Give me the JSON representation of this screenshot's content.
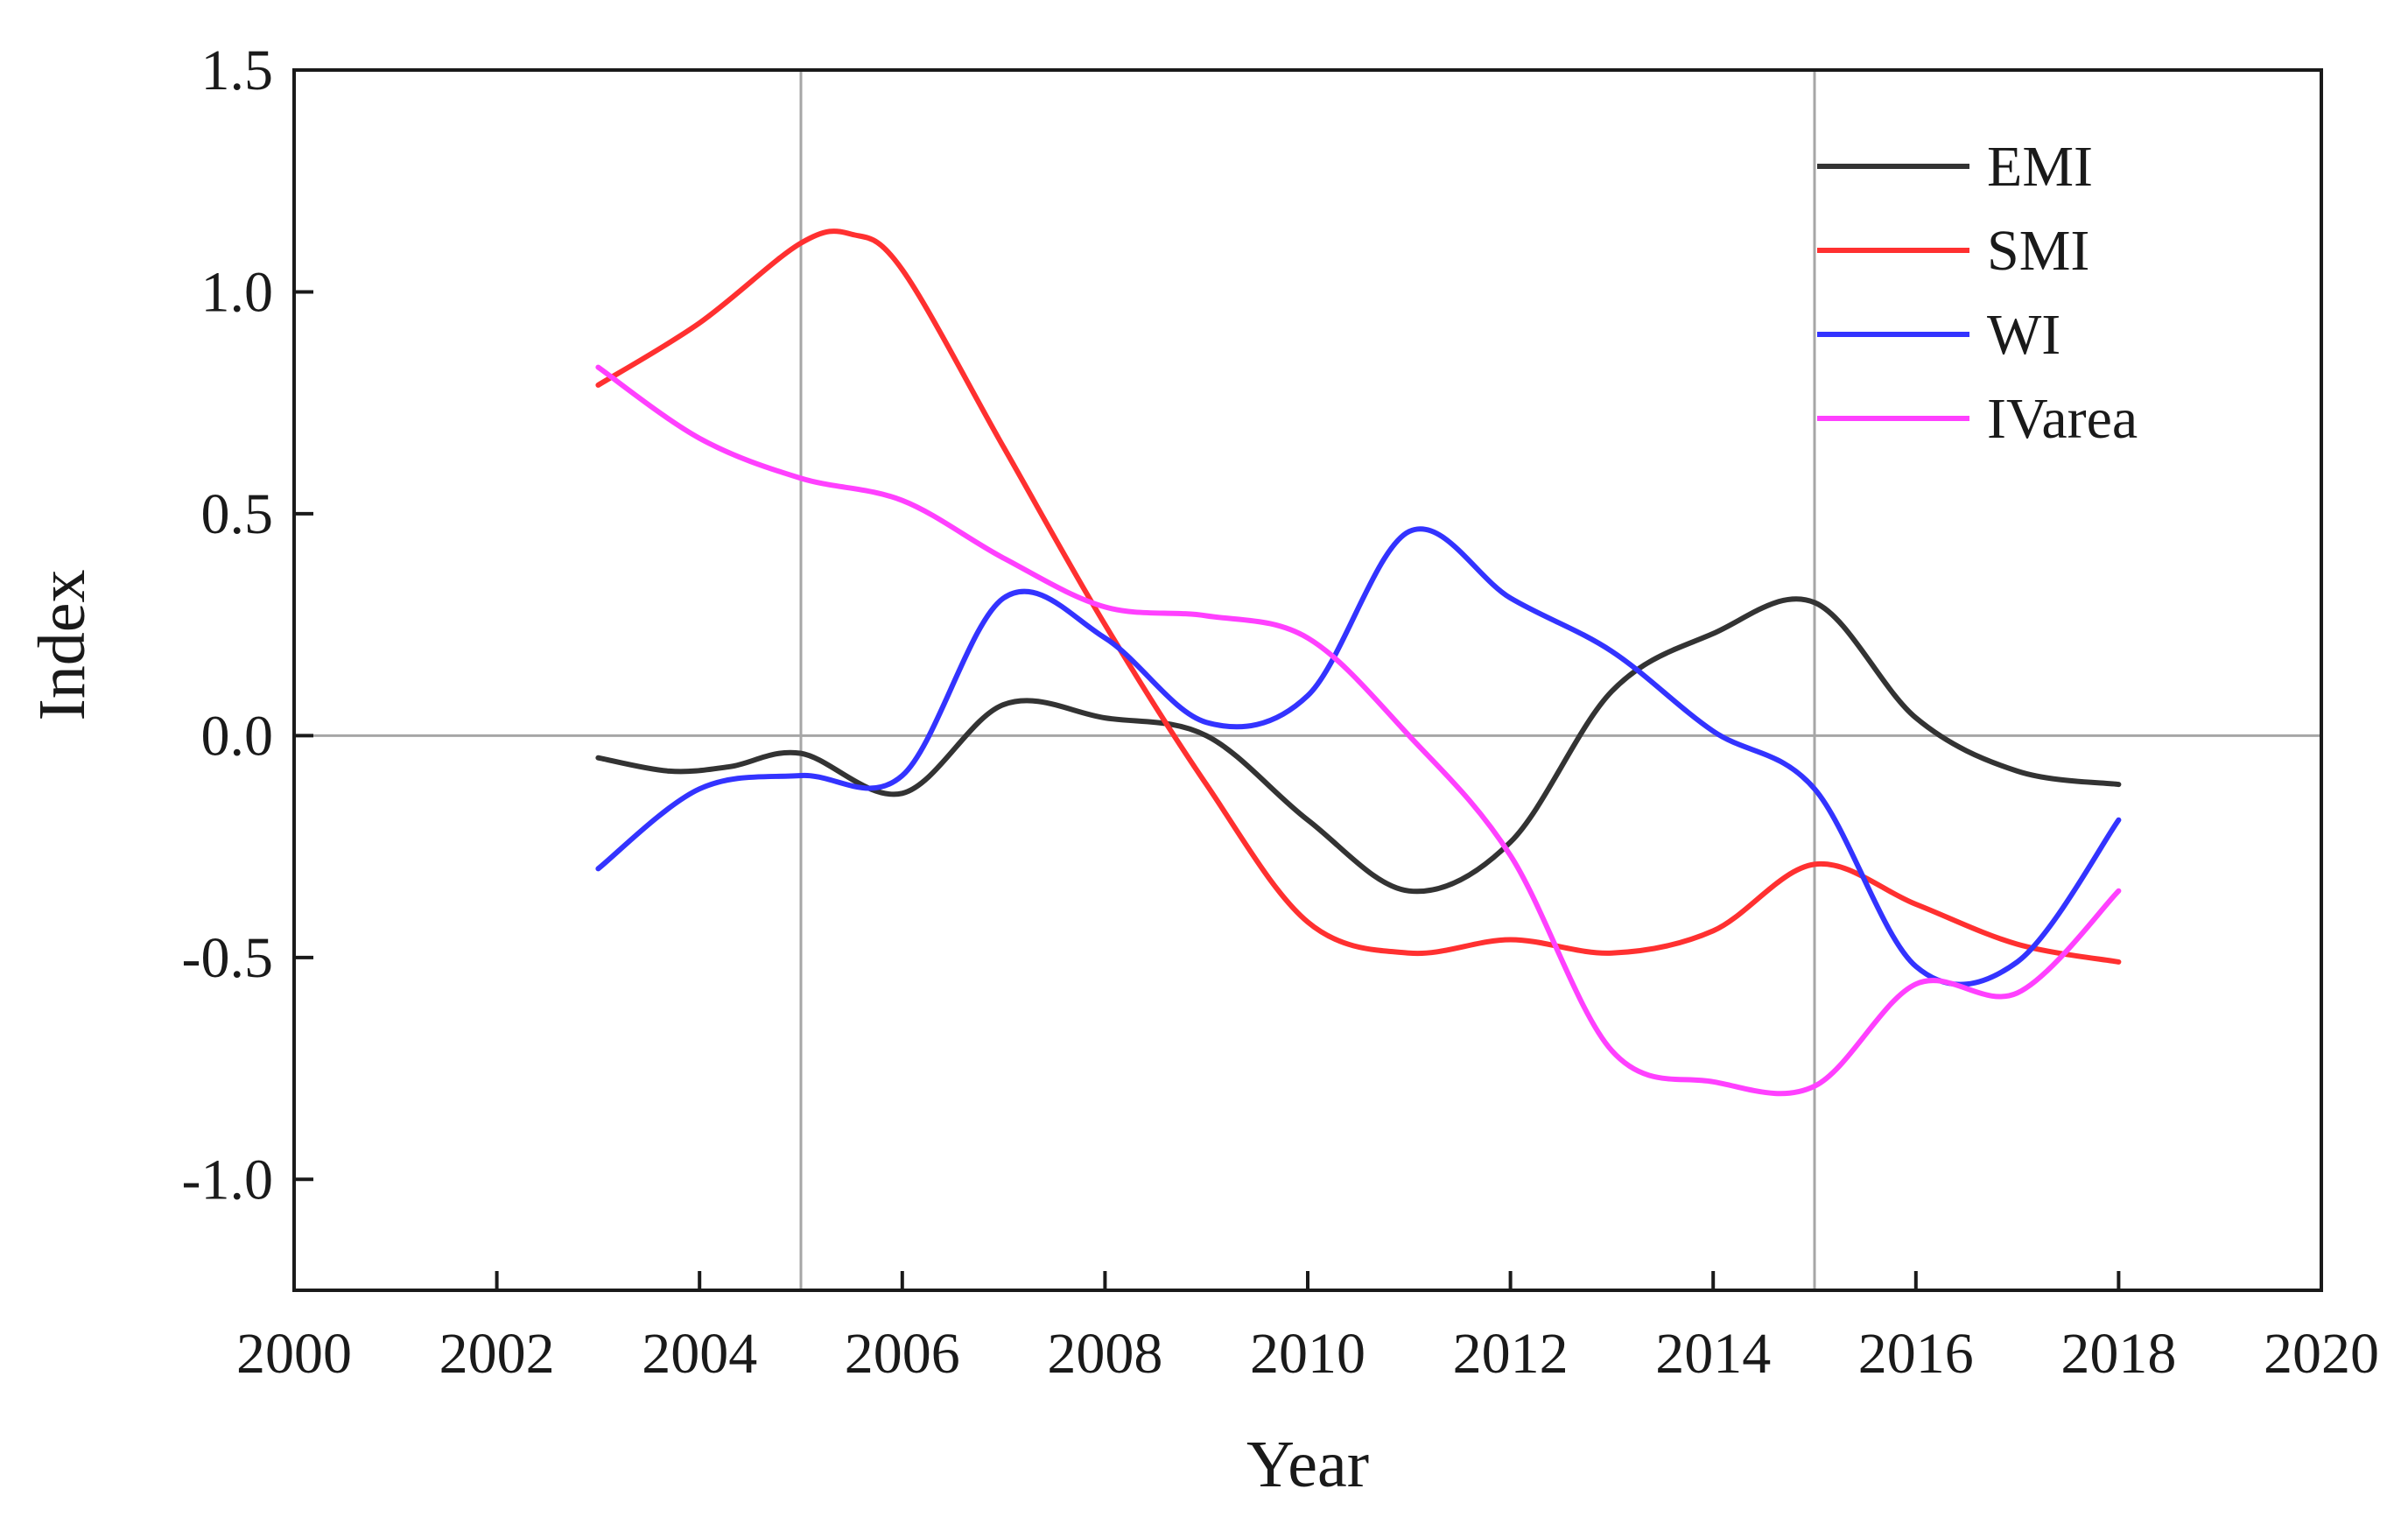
{
  "chart_data": {
    "type": "line",
    "title": "",
    "xlabel": "Year",
    "ylabel": "Index",
    "xlim": [
      2000,
      2020
    ],
    "ylim": [
      -1.25,
      1.5
    ],
    "x_ticks": [
      2000,
      2002,
      2004,
      2006,
      2008,
      2010,
      2012,
      2014,
      2016,
      2018,
      2020
    ],
    "x_tick_labels": [
      "2000",
      "2002",
      "2004",
      "2006",
      "2008",
      "2010",
      "2012",
      "2014",
      "2016",
      "2018",
      "2020"
    ],
    "y_ticks": [
      -1.0,
      -0.5,
      0.0,
      0.5,
      1.0,
      1.5
    ],
    "y_tick_labels": [
      "-1.0",
      "-0.5",
      "0.0",
      "0.5",
      "1.0",
      "1.5"
    ],
    "grid": false,
    "reference_lines": {
      "vertical_x": [
        2005,
        2015
      ],
      "horizontal_y": [
        0.0
      ],
      "color": "#a6a6a6"
    },
    "legend_position": "top-right",
    "series": [
      {
        "name": "EMI",
        "color": "#333333",
        "x": [
          2003,
          2003.7,
          2004.3,
          2005,
          2006,
          2007,
          2008,
          2009,
          2010,
          2011,
          2012,
          2013,
          2014,
          2015,
          2016,
          2017,
          2018
        ],
        "y": [
          -0.05,
          -0.08,
          -0.07,
          -0.04,
          -0.13,
          0.07,
          0.04,
          0.0,
          -0.19,
          -0.35,
          -0.24,
          0.1,
          0.23,
          0.3,
          0.04,
          -0.08,
          -0.11
        ]
      },
      {
        "name": "SMI",
        "color": "#ff3030",
        "x": [
          2003,
          2004,
          2005,
          2005.5,
          2006,
          2007,
          2008,
          2009,
          2010,
          2011,
          2012,
          2013,
          2014,
          2015,
          2016,
          2017,
          2018
        ],
        "y": [
          0.79,
          0.93,
          1.11,
          1.13,
          1.05,
          0.65,
          0.25,
          -0.11,
          -0.42,
          -0.49,
          -0.46,
          -0.49,
          -0.44,
          -0.29,
          -0.38,
          -0.47,
          -0.51
        ]
      },
      {
        "name": "WI",
        "color": "#3333ff",
        "x": [
          2003,
          2004,
          2005,
          2006,
          2007,
          2008,
          2009,
          2010,
          2011,
          2012,
          2013,
          2014,
          2015,
          2016,
          2017,
          2018
        ],
        "y": [
          -0.3,
          -0.12,
          -0.09,
          -0.09,
          0.31,
          0.22,
          0.03,
          0.09,
          0.46,
          0.31,
          0.19,
          0.01,
          -0.12,
          -0.52,
          -0.51,
          -0.19
        ]
      },
      {
        "name": "IVarea",
        "color": "#ff40ff",
        "x": [
          2003,
          2004,
          2005,
          2006,
          2007,
          2008,
          2009,
          2010,
          2011,
          2012,
          2013,
          2014,
          2015,
          2016,
          2017,
          2018
        ],
        "y": [
          0.83,
          0.67,
          0.58,
          0.53,
          0.4,
          0.29,
          0.27,
          0.22,
          0.0,
          -0.27,
          -0.71,
          -0.78,
          -0.79,
          -0.56,
          -0.58,
          -0.35
        ]
      }
    ]
  }
}
